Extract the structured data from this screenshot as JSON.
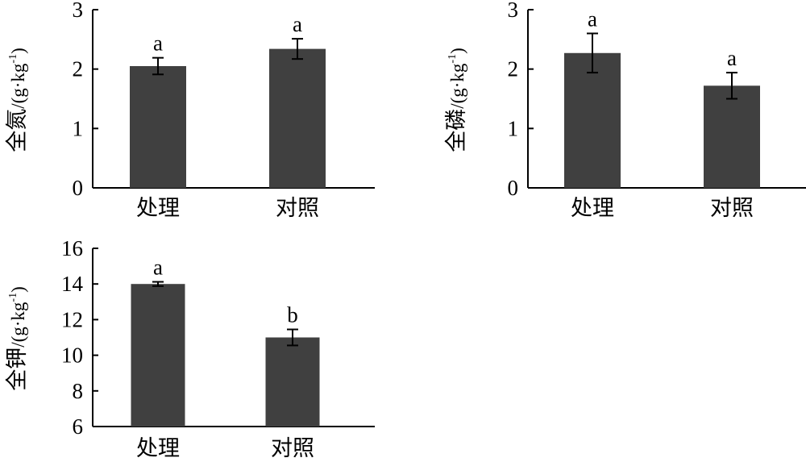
{
  "chart_data": [
    {
      "type": "bar",
      "categories": [
        "处理",
        "对照"
      ],
      "values": [
        2.05,
        2.34
      ],
      "errors": [
        0.14,
        0.17
      ],
      "significance": [
        "a",
        "a"
      ],
      "ylabel": "全氮/(g·kg-1)",
      "ylabel_main": "全氮",
      "ylabel_unit": "/(g·kg",
      "ylabel_sup": "-1",
      "ylabel_close": ")",
      "ylim": [
        0,
        3
      ],
      "yticks": [
        "0",
        "1",
        "2",
        "3"
      ],
      "bar_color": "#404040",
      "grid": false
    },
    {
      "type": "bar",
      "categories": [
        "处理",
        "对照"
      ],
      "values": [
        2.27,
        1.72
      ],
      "errors": [
        0.33,
        0.22
      ],
      "significance": [
        "a",
        "a"
      ],
      "ylabel": "全磷/(g·kg-1)",
      "ylabel_main": "全磷",
      "ylabel_unit": "/(g·kg",
      "ylabel_sup": "-1",
      "ylabel_close": ")",
      "ylim": [
        0,
        3
      ],
      "yticks": [
        "0",
        "1",
        "2",
        "3"
      ],
      "bar_color": "#404040",
      "grid": false
    },
    {
      "type": "bar",
      "categories": [
        "处理",
        "对照"
      ],
      "values": [
        14.0,
        11.0
      ],
      "errors": [
        0.12,
        0.45
      ],
      "significance": [
        "a",
        "b"
      ],
      "ylabel": "全钾/(g·kg-1)",
      "ylabel_main": "全钾",
      "ylabel_unit": "/(g·kg",
      "ylabel_sup": "-1",
      "ylabel_close": ")",
      "ylim": [
        6,
        16
      ],
      "yticks": [
        "6",
        "8",
        "10",
        "12",
        "14",
        "16"
      ],
      "bar_color": "#404040",
      "grid": false
    }
  ]
}
